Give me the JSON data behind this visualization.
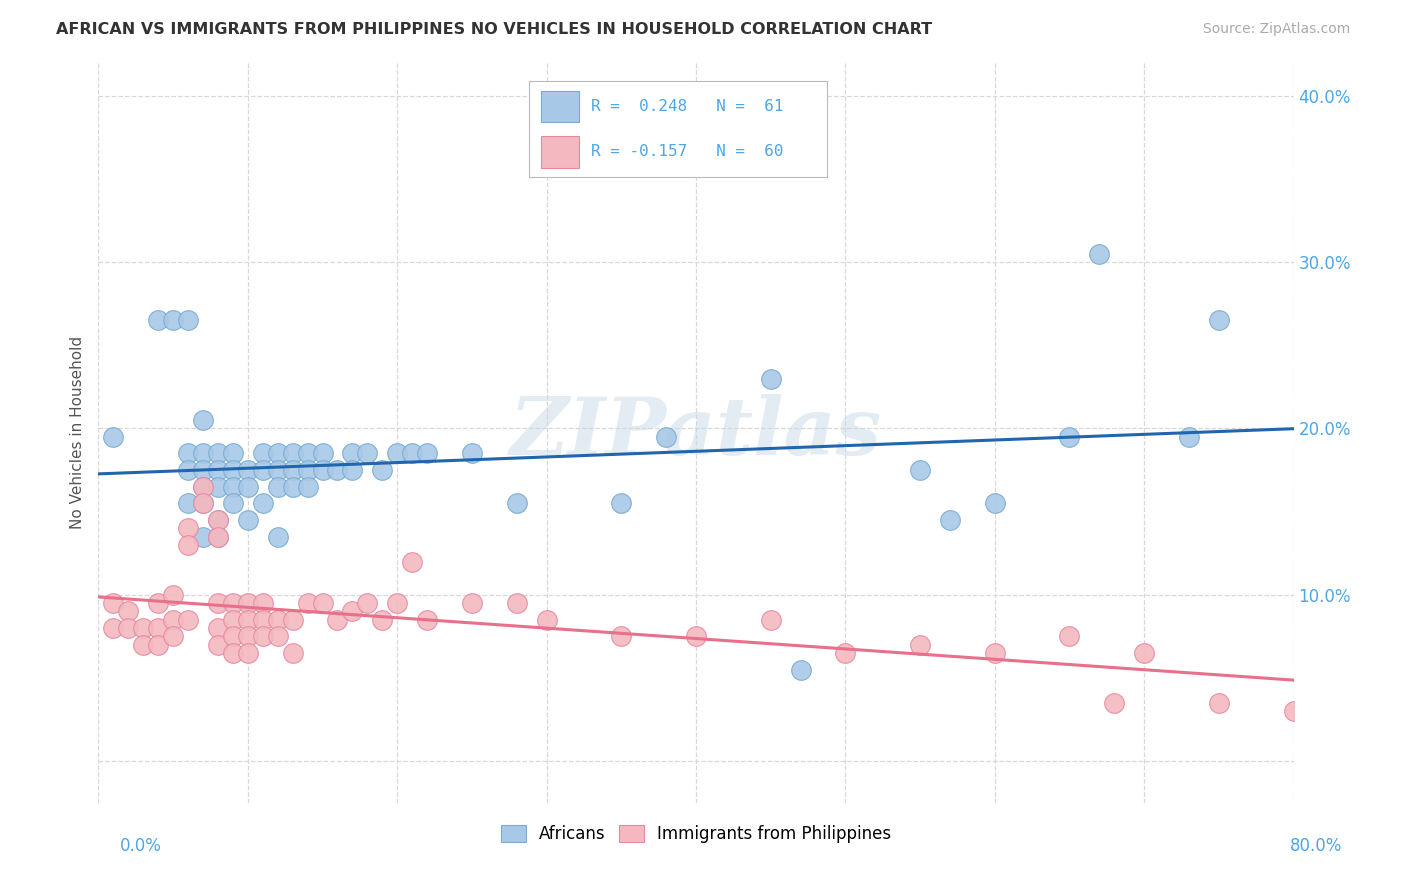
{
  "title": "AFRICAN VS IMMIGRANTS FROM PHILIPPINES NO VEHICLES IN HOUSEHOLD CORRELATION CHART",
  "source": "Source: ZipAtlas.com",
  "ylabel": "No Vehicles in Household",
  "xlim": [
    0,
    0.8
  ],
  "ylim": [
    -0.025,
    0.42
  ],
  "x_ticks": [
    0.0,
    0.1,
    0.2,
    0.3,
    0.4,
    0.5,
    0.6,
    0.7,
    0.8
  ],
  "y_ticks": [
    0.0,
    0.1,
    0.2,
    0.3,
    0.4
  ],
  "blue_R": 0.248,
  "blue_N": 61,
  "pink_R": -0.157,
  "pink_N": 60,
  "blue_color": "#a8c8e8",
  "pink_color": "#f4b8c0",
  "blue_edge_color": "#7aabcf",
  "pink_edge_color": "#e888a0",
  "blue_line_color": "#2166ac",
  "pink_line_color": "#e8708a",
  "tick_color": "#4da6e8",
  "background_color": "#ffffff",
  "grid_color": "#d8d8d8",
  "watermark_text": "ZIPatlas",
  "blue_scatter_x": [
    0.01,
    0.04,
    0.05,
    0.06,
    0.06,
    0.06,
    0.06,
    0.07,
    0.07,
    0.07,
    0.07,
    0.07,
    0.07,
    0.08,
    0.08,
    0.08,
    0.08,
    0.08,
    0.09,
    0.09,
    0.09,
    0.09,
    0.1,
    0.1,
    0.1,
    0.11,
    0.11,
    0.11,
    0.12,
    0.12,
    0.12,
    0.12,
    0.13,
    0.13,
    0.13,
    0.14,
    0.14,
    0.14,
    0.15,
    0.15,
    0.16,
    0.17,
    0.17,
    0.18,
    0.19,
    0.2,
    0.21,
    0.22,
    0.25,
    0.28,
    0.35,
    0.38,
    0.45,
    0.47,
    0.55,
    0.57,
    0.6,
    0.65,
    0.67,
    0.73,
    0.75
  ],
  "blue_scatter_y": [
    0.195,
    0.265,
    0.265,
    0.155,
    0.265,
    0.185,
    0.175,
    0.205,
    0.185,
    0.175,
    0.165,
    0.155,
    0.135,
    0.185,
    0.175,
    0.165,
    0.145,
    0.135,
    0.185,
    0.175,
    0.165,
    0.155,
    0.175,
    0.165,
    0.145,
    0.185,
    0.175,
    0.155,
    0.185,
    0.175,
    0.165,
    0.135,
    0.185,
    0.175,
    0.165,
    0.185,
    0.175,
    0.165,
    0.185,
    0.175,
    0.175,
    0.185,
    0.175,
    0.185,
    0.175,
    0.185,
    0.185,
    0.185,
    0.185,
    0.155,
    0.155,
    0.195,
    0.23,
    0.055,
    0.175,
    0.145,
    0.155,
    0.195,
    0.305,
    0.195,
    0.265
  ],
  "pink_scatter_x": [
    0.01,
    0.01,
    0.02,
    0.02,
    0.03,
    0.03,
    0.04,
    0.04,
    0.04,
    0.05,
    0.05,
    0.05,
    0.06,
    0.06,
    0.06,
    0.07,
    0.07,
    0.08,
    0.08,
    0.08,
    0.08,
    0.08,
    0.09,
    0.09,
    0.09,
    0.09,
    0.1,
    0.1,
    0.1,
    0.1,
    0.11,
    0.11,
    0.11,
    0.12,
    0.12,
    0.13,
    0.13,
    0.14,
    0.15,
    0.16,
    0.17,
    0.18,
    0.19,
    0.2,
    0.21,
    0.22,
    0.25,
    0.28,
    0.3,
    0.35,
    0.4,
    0.45,
    0.5,
    0.55,
    0.6,
    0.65,
    0.68,
    0.7,
    0.75,
    0.8
  ],
  "pink_scatter_y": [
    0.095,
    0.08,
    0.09,
    0.08,
    0.08,
    0.07,
    0.095,
    0.08,
    0.07,
    0.1,
    0.085,
    0.075,
    0.14,
    0.13,
    0.085,
    0.165,
    0.155,
    0.145,
    0.135,
    0.095,
    0.08,
    0.07,
    0.095,
    0.085,
    0.075,
    0.065,
    0.095,
    0.085,
    0.075,
    0.065,
    0.095,
    0.085,
    0.075,
    0.085,
    0.075,
    0.085,
    0.065,
    0.095,
    0.095,
    0.085,
    0.09,
    0.095,
    0.085,
    0.095,
    0.12,
    0.085,
    0.095,
    0.095,
    0.085,
    0.075,
    0.075,
    0.085,
    0.065,
    0.07,
    0.065,
    0.075,
    0.035,
    0.065,
    0.035,
    0.03
  ]
}
